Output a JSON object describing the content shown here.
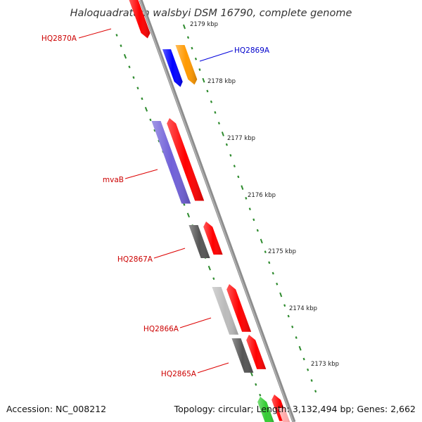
{
  "title": "Haloquadratum walsbyi DSM 16790, complete genome",
  "ticks": [
    {
      "label": "2179 kbp"
    },
    {
      "label": "2178 kbp"
    },
    {
      "label": "2177 kbp"
    },
    {
      "label": "2176 kbp"
    },
    {
      "label": "2175 kbp"
    },
    {
      "label": "2174 kbp"
    },
    {
      "label": "2173 kbp"
    }
  ],
  "genes": [
    {
      "label": "HQ2870A",
      "color": "#cc0000"
    },
    {
      "label": "HQ2869A",
      "color": "#0000cc"
    },
    {
      "label": "mvaB",
      "color": "#cc0000"
    },
    {
      "label": "HQ2867A",
      "color": "#cc0000"
    },
    {
      "label": "HQ2866A",
      "color": "#cc0000"
    },
    {
      "label": "HQ2865A",
      "color": "#cc0000"
    }
  ],
  "colors": {
    "backbone": "#8c8c8c",
    "tick_green": "#2e8b2e",
    "cds_red": "#ff0000",
    "blue": "#0000ff",
    "orange": "#ff9900",
    "purple": "#7060d8",
    "dark_gray": "#555555",
    "light_gray": "#bbbbbb",
    "green": "#33cc33",
    "pink": "#ffaaaa"
  },
  "footer": {
    "accession": "Accession: NC_008212",
    "summary": "Topology: circular; Length: 3,132,494 bp; Genes: 2,662"
  }
}
